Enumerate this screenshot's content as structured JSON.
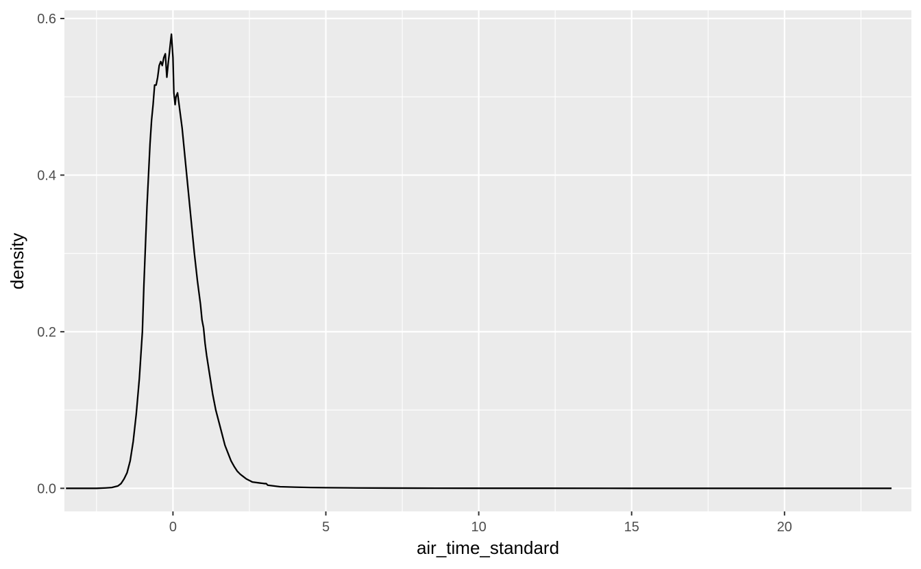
{
  "chart_data": {
    "type": "line",
    "title": "",
    "xlabel": "air_time_standard",
    "ylabel": "density",
    "xlim": [
      -3.55,
      24.15
    ],
    "ylim": [
      -0.0295,
      0.6105
    ],
    "x_ticks": [
      0,
      5,
      10,
      15,
      20
    ],
    "x_tick_labels": [
      "0",
      "5",
      "10",
      "15",
      "20"
    ],
    "y_ticks": [
      0.0,
      0.2,
      0.4,
      0.6
    ],
    "y_tick_labels": [
      "0.0",
      "0.2",
      "0.4",
      "0.6"
    ],
    "grid": true,
    "legend": "none",
    "colors": {
      "panel": "#ebebeb",
      "grid": "#ffffff",
      "line": "#000000",
      "tick": "#333333",
      "tick_text": "#4d4d4d"
    },
    "series": [
      {
        "x": [
          -3.5,
          -3.0,
          -2.5,
          -2.2,
          -2.0,
          -1.9,
          -1.8,
          -1.7,
          -1.6,
          -1.5,
          -1.4,
          -1.3,
          -1.2,
          -1.1,
          -1.0,
          -0.95,
          -0.9,
          -0.85,
          -0.8,
          -0.75,
          -0.7,
          -0.65,
          -0.6,
          -0.55,
          -0.5,
          -0.45,
          -0.4,
          -0.35,
          -0.3,
          -0.25,
          -0.2,
          -0.15,
          -0.12,
          -0.08,
          -0.05,
          0.0,
          0.03,
          0.07,
          0.1,
          0.15,
          0.2,
          0.25,
          0.3,
          0.35,
          0.4,
          0.5,
          0.6,
          0.7,
          0.8,
          0.9,
          0.95,
          1.0,
          1.05,
          1.1,
          1.2,
          1.3,
          1.4,
          1.5,
          1.6,
          1.7,
          1.8,
          1.9,
          2.0,
          2.1,
          2.2,
          2.3,
          2.4,
          2.5,
          2.6,
          2.8,
          3.0,
          3.05,
          3.1,
          3.3,
          3.5,
          4.0,
          4.5,
          5.0,
          6.0,
          7.0,
          8.0,
          10.0,
          12.0,
          15.0,
          18.0,
          20.0,
          23.5
        ],
        "y": [
          0.0,
          0.0,
          0.0,
          0.0005,
          0.001,
          0.002,
          0.003,
          0.006,
          0.012,
          0.02,
          0.035,
          0.06,
          0.095,
          0.14,
          0.2,
          0.26,
          0.31,
          0.36,
          0.4,
          0.44,
          0.47,
          0.49,
          0.515,
          0.515,
          0.525,
          0.54,
          0.545,
          0.54,
          0.55,
          0.555,
          0.525,
          0.545,
          0.555,
          0.57,
          0.58,
          0.55,
          0.505,
          0.49,
          0.5,
          0.505,
          0.49,
          0.475,
          0.46,
          0.44,
          0.42,
          0.38,
          0.34,
          0.3,
          0.265,
          0.235,
          0.215,
          0.205,
          0.185,
          0.17,
          0.145,
          0.12,
          0.1,
          0.085,
          0.07,
          0.055,
          0.045,
          0.035,
          0.028,
          0.022,
          0.018,
          0.015,
          0.012,
          0.01,
          0.008,
          0.007,
          0.006,
          0.006,
          0.004,
          0.003,
          0.002,
          0.0015,
          0.001,
          0.0008,
          0.0005,
          0.0003,
          0.0002,
          0.0001,
          0.0001,
          0.0,
          0.0,
          0.0,
          0.0
        ]
      }
    ]
  }
}
